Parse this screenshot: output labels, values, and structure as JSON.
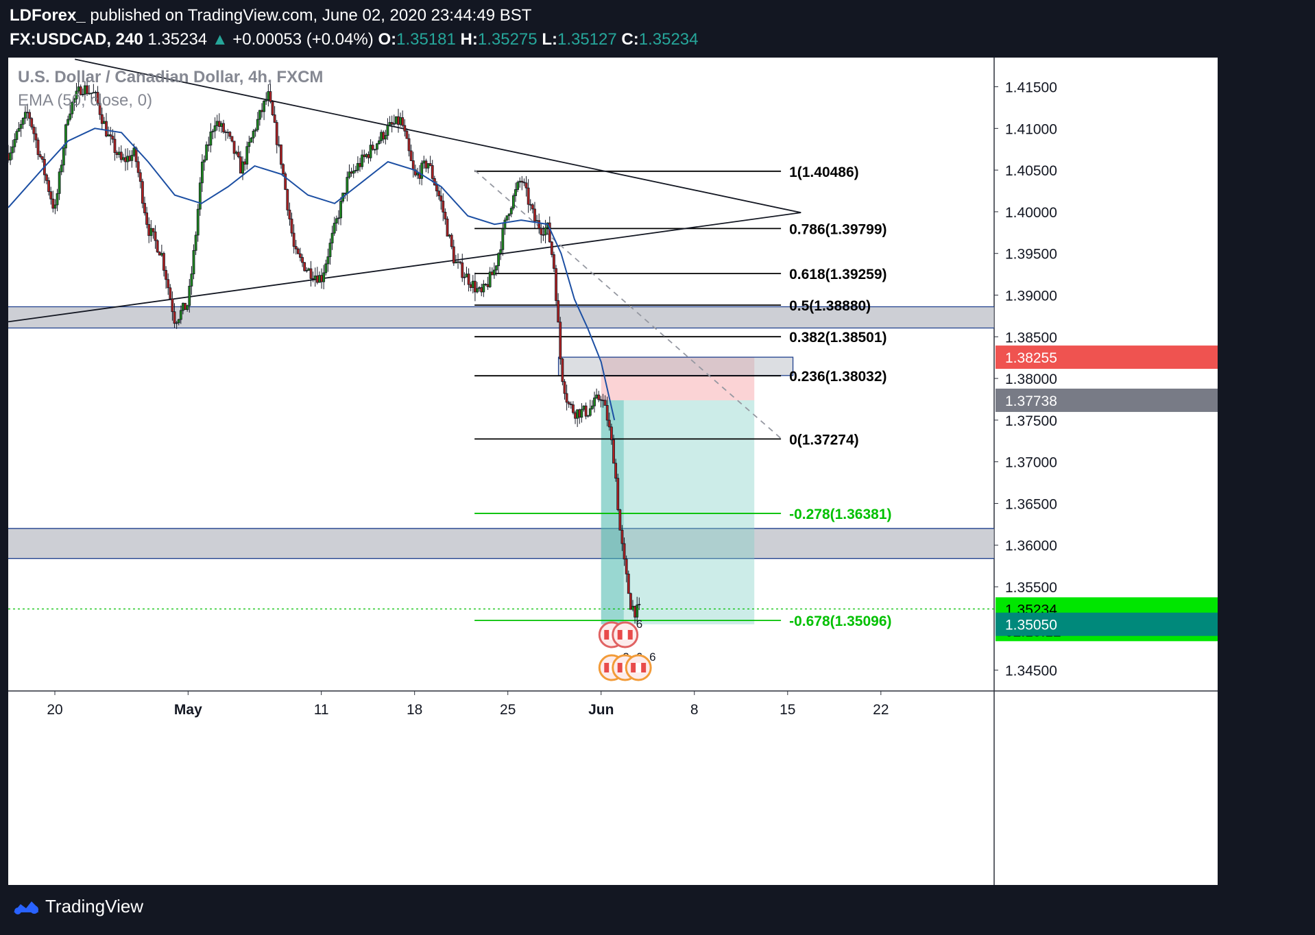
{
  "header": {
    "publisher": "LDForex_",
    "published_text": "published on TradingView.com, June 02, 2020 23:44:49 BST",
    "symbol": "FX:USDCAD, 240",
    "last": "1.35234",
    "change": "+0.00053 (+0.04%)",
    "open_label": "O:",
    "open": "1.35181",
    "high_label": "H:",
    "high": "1.35275",
    "low_label": "L:",
    "low": "1.35127",
    "close_label": "C:",
    "close": "1.35234"
  },
  "legend": {
    "title": "U.S. Dollar / Canadian Dollar, 4h, FXCM",
    "indicator": "EMA (50, close, 0)"
  },
  "chart_data": {
    "type": "candlestick",
    "title": "U.S. Dollar / Canadian Dollar, 4h, FXCM",
    "y_axis": {
      "ticks": [
        "1.41500",
        "1.41000",
        "1.40500",
        "1.40000",
        "1.39500",
        "1.39000",
        "1.38500",
        "1.38000",
        "1.37500",
        "1.37000",
        "1.36500",
        "1.36000",
        "1.35500",
        "1.34500"
      ],
      "range": [
        1.3425,
        1.4185
      ]
    },
    "x_axis": {
      "ticks": [
        {
          "label": "20",
          "day": 0
        },
        {
          "label": "May",
          "day": 10
        },
        {
          "label": "11",
          "day": 20
        },
        {
          "label": "18",
          "day": 27
        },
        {
          "label": "25",
          "day": 34
        },
        {
          "label": "Jun",
          "day": 41
        },
        {
          "label": "8",
          "day": 48
        },
        {
          "label": "15",
          "day": 55
        },
        {
          "label": "22",
          "day": 62
        }
      ],
      "range_days": [
        -3.5,
        70.5
      ]
    },
    "price_path": [
      [
        -3.5,
        1.407
      ],
      [
        -2,
        1.412
      ],
      [
        -1,
        1.406
      ],
      [
        0,
        1.4
      ],
      [
        1,
        1.412
      ],
      [
        2,
        1.415
      ],
      [
        3,
        1.414
      ],
      [
        4,
        1.409
      ],
      [
        5,
        1.406
      ],
      [
        6,
        1.407
      ],
      [
        7,
        1.398
      ],
      [
        8,
        1.395
      ],
      [
        9,
        1.387
      ],
      [
        10,
        1.389
      ],
      [
        10.5,
        1.396
      ],
      [
        11,
        1.405
      ],
      [
        12,
        1.411
      ],
      [
        13,
        1.409
      ],
      [
        14,
        1.405
      ],
      [
        15,
        1.41
      ],
      [
        16,
        1.414
      ],
      [
        17,
        1.406
      ],
      [
        18,
        1.395
      ],
      [
        19,
        1.393
      ],
      [
        20,
        1.392
      ],
      [
        21,
        1.398
      ],
      [
        22,
        1.404
      ],
      [
        23,
        1.406
      ],
      [
        24,
        1.408
      ],
      [
        25,
        1.41
      ],
      [
        26,
        1.411
      ],
      [
        27,
        1.404
      ],
      [
        28,
        1.406
      ],
      [
        29,
        1.401
      ],
      [
        30,
        1.394
      ],
      [
        31,
        1.392
      ],
      [
        32,
        1.39
      ],
      [
        33,
        1.393
      ],
      [
        34,
        1.4
      ],
      [
        35,
        1.404
      ],
      [
        36,
        1.399
      ],
      [
        36.5,
        1.398
      ],
      [
        37,
        1.398
      ],
      [
        37.5,
        1.393
      ],
      [
        38,
        1.381
      ],
      [
        38.5,
        1.377
      ],
      [
        39,
        1.376
      ],
      [
        40,
        1.376
      ],
      [
        41,
        1.378
      ],
      [
        41.5,
        1.375
      ],
      [
        42,
        1.37
      ],
      [
        42.4,
        1.362
      ],
      [
        42.8,
        1.357
      ],
      [
        43.2,
        1.353
      ],
      [
        43.6,
        1.352
      ],
      [
        44,
        1.3523
      ]
    ],
    "ema": [
      [
        -3.5,
        1.4005
      ],
      [
        -1,
        1.405
      ],
      [
        1,
        1.4085
      ],
      [
        3,
        1.41
      ],
      [
        5,
        1.4095
      ],
      [
        7,
        1.406
      ],
      [
        9,
        1.402
      ],
      [
        11,
        1.401
      ],
      [
        13,
        1.403
      ],
      [
        15,
        1.4055
      ],
      [
        17,
        1.4045
      ],
      [
        19,
        1.402
      ],
      [
        21,
        1.401
      ],
      [
        23,
        1.4035
      ],
      [
        25,
        1.406
      ],
      [
        27,
        1.405
      ],
      [
        29,
        1.403
      ],
      [
        31,
        1.3995
      ],
      [
        33,
        1.3985
      ],
      [
        35,
        1.399
      ],
      [
        37,
        1.3985
      ],
      [
        38,
        1.395
      ],
      [
        39,
        1.3895
      ],
      [
        40,
        1.386
      ],
      [
        41,
        1.382
      ],
      [
        42,
        1.375
      ]
    ],
    "fibonacci": [
      {
        "label": "1(1.40486)",
        "price": 1.40486,
        "color": "#000000"
      },
      {
        "label": "0.786(1.39799)",
        "price": 1.39799,
        "color": "#000000"
      },
      {
        "label": "0.618(1.39259)",
        "price": 1.39259,
        "color": "#000000"
      },
      {
        "label": "0.5(1.38880)",
        "price": 1.3888,
        "color": "#000000"
      },
      {
        "label": "0.382(1.38501)",
        "price": 1.38501,
        "color": "#000000"
      },
      {
        "label": "0.236(1.38032)",
        "price": 1.38032,
        "color": "#000000"
      },
      {
        "label": "0(1.37274)",
        "price": 1.37274,
        "color": "#000000"
      },
      {
        "label": "-0.278(1.36381)",
        "price": 1.36381,
        "color": "#00c000"
      },
      {
        "label": "-0.678(1.35096)",
        "price": 1.35096,
        "color": "#00c000"
      }
    ],
    "fib_x_range_days": [
      31.5,
      54.5
    ],
    "zones": [
      {
        "from": 1.3886,
        "to": 1.38605
      },
      {
        "from": 1.362,
        "to": 1.3584
      },
      {
        "from": 1.38255,
        "to": 1.38035
      }
    ],
    "trendlines": [
      {
        "from": [
          1.5,
          1.4183
        ],
        "to": [
          56,
          1.3999
        ],
        "style": "solid"
      },
      {
        "from": [
          -3.5,
          1.3868
        ],
        "to": [
          56,
          1.3999
        ],
        "style": "solid"
      },
      {
        "from": [
          31.5,
          1.405
        ],
        "to": [
          54.5,
          1.3728
        ],
        "style": "dashed"
      }
    ],
    "position": {
      "type": "short",
      "entry": 1.37738,
      "stop": 1.38255,
      "target": 1.3505,
      "x_range_days": [
        41,
        52.5
      ]
    },
    "price_labels": [
      {
        "text": "1.38255",
        "price": 1.38255,
        "color": "#ef5350"
      },
      {
        "text": "1.37738",
        "price": 1.37738,
        "color": "#787b86"
      },
      {
        "text": "1.35234",
        "price": 1.35234,
        "color": "#00e600",
        "countdown": "02:15:12"
      },
      {
        "text": "1.35050",
        "price": 1.3505,
        "color": "#00897b"
      }
    ],
    "events": [
      {
        "day": 41.8,
        "row": 1,
        "count": ""
      },
      {
        "day": 42.8,
        "row": 1,
        "count": "6"
      },
      {
        "day": 41.8,
        "row": 2,
        "count": "2"
      },
      {
        "day": 42.8,
        "row": 2,
        "count": "6"
      },
      {
        "day": 43.8,
        "row": 2,
        "count": "6"
      }
    ]
  },
  "footer": {
    "brand": "TradingView"
  }
}
